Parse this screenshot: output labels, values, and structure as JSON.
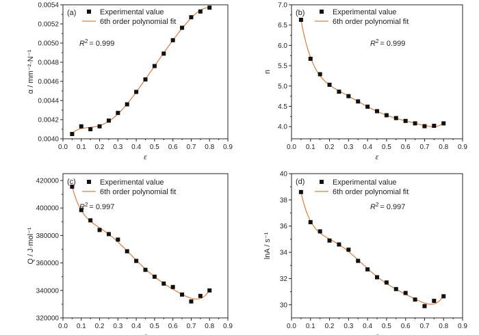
{
  "chart_data": [
    {
      "type": "scatter",
      "panel_label": "(a)",
      "xlabel": "ε",
      "ylabel": "α / mm⁻²·N⁻¹",
      "xlim": [
        0.0,
        0.9
      ],
      "ylim": [
        0.004,
        0.0054
      ],
      "xticks": [
        "0.0",
        "0.1",
        "0.2",
        "0.3",
        "0.4",
        "0.5",
        "0.6",
        "0.7",
        "0.8",
        "0.9"
      ],
      "yticks": [
        "0.0040",
        "0.0042",
        "0.0044",
        "0.0046",
        "0.0048",
        "0.0050",
        "0.0052",
        "0.0054"
      ],
      "legend": {
        "markers": "Experimental value",
        "line": "6th order polynomial fit"
      },
      "r2_label": "R",
      "r2_value": "= 0.999",
      "series": [
        {
          "name": "Experimental value",
          "x": [
            0.05,
            0.1,
            0.15,
            0.2,
            0.25,
            0.3,
            0.35,
            0.4,
            0.45,
            0.5,
            0.55,
            0.6,
            0.65,
            0.7,
            0.75,
            0.8
          ],
          "y": [
            0.00405,
            0.00413,
            0.0041,
            0.00413,
            0.00419,
            0.00427,
            0.00436,
            0.00449,
            0.00462,
            0.00476,
            0.00489,
            0.00503,
            0.00516,
            0.00527,
            0.00533,
            0.00537
          ]
        }
      ]
    },
    {
      "type": "scatter",
      "panel_label": "(b)",
      "xlabel": "ε",
      "ylabel": "n",
      "xlim": [
        0.0,
        0.9
      ],
      "ylim": [
        3.7,
        7.0
      ],
      "xticks": [
        "0.0",
        "0.1",
        "0.2",
        "0.3",
        "0.4",
        "0.5",
        "0.6",
        "0.7",
        "0.8",
        "0.9"
      ],
      "yticks": [
        "4.0",
        "4.5",
        "5.0",
        "5.5",
        "6.0",
        "6.5",
        "7.0"
      ],
      "legend": {
        "markers": "Experimental value",
        "line": "6th order polynomial fit"
      },
      "r2_label": "R",
      "r2_value": "= 0.999",
      "series": [
        {
          "name": "Experimental value",
          "x": [
            0.05,
            0.1,
            0.15,
            0.2,
            0.25,
            0.3,
            0.35,
            0.4,
            0.45,
            0.5,
            0.55,
            0.6,
            0.65,
            0.7,
            0.75,
            0.8
          ],
          "y": [
            6.63,
            5.67,
            5.29,
            5.03,
            4.86,
            4.75,
            4.62,
            4.49,
            4.38,
            4.28,
            4.21,
            4.14,
            4.08,
            4.01,
            4.02,
            4.08
          ]
        }
      ]
    },
    {
      "type": "scatter",
      "panel_label": "(c)",
      "xlabel": "ε",
      "ylabel": "Q / J·mol⁻¹",
      "xlim": [
        0.0,
        0.9
      ],
      "ylim": [
        320000,
        425000
      ],
      "xticks": [
        "0.0",
        "0.1",
        "0.2",
        "0.3",
        "0.4",
        "0.5",
        "0.6",
        "0.7",
        "0.8",
        "0.9"
      ],
      "yticks": [
        "320000",
        "340000",
        "360000",
        "380000",
        "400000",
        "420000"
      ],
      "legend": {
        "markers": "Experimental value",
        "line": "6th order polynomial fit"
      },
      "r2_label": "R",
      "r2_value": "= 0.997",
      "series": [
        {
          "name": "Experimental value",
          "x": [
            0.05,
            0.1,
            0.15,
            0.2,
            0.25,
            0.3,
            0.35,
            0.4,
            0.45,
            0.5,
            0.55,
            0.6,
            0.65,
            0.7,
            0.75,
            0.8
          ],
          "y": [
            415500,
            398500,
            391000,
            384000,
            381000,
            377000,
            368500,
            361500,
            355000,
            350000,
            345000,
            342500,
            337000,
            332000,
            336000,
            340000
          ]
        }
      ]
    },
    {
      "type": "scatter",
      "panel_label": "(d)",
      "xlabel": "ε",
      "ylabel": "lnA / s⁻¹",
      "xlim": [
        0.0,
        0.9
      ],
      "ylim": [
        29,
        40
      ],
      "xticks": [
        "0.0",
        "0.1",
        "0.2",
        "0.3",
        "0.4",
        "0.5",
        "0.6",
        "0.7",
        "0.8",
        "0.9"
      ],
      "yticks": [
        "30",
        "32",
        "34",
        "36",
        "38",
        "40"
      ],
      "legend": {
        "markers": "Experimental value",
        "line": "6th order polynomial fit"
      },
      "r2_label": "R",
      "r2_value": "= 0.997",
      "series": [
        {
          "name": "Experimental value",
          "x": [
            0.05,
            0.1,
            0.15,
            0.2,
            0.25,
            0.3,
            0.35,
            0.4,
            0.45,
            0.5,
            0.55,
            0.6,
            0.65,
            0.7,
            0.75,
            0.8
          ],
          "y": [
            38.6,
            36.3,
            35.6,
            34.9,
            34.6,
            34.2,
            33.35,
            32.7,
            32.1,
            31.7,
            31.2,
            30.9,
            30.4,
            29.9,
            30.3,
            30.65
          ]
        }
      ]
    }
  ],
  "colors": {
    "marker": "#111111",
    "fit_line": "#e07a3c",
    "axis": "#222222"
  }
}
